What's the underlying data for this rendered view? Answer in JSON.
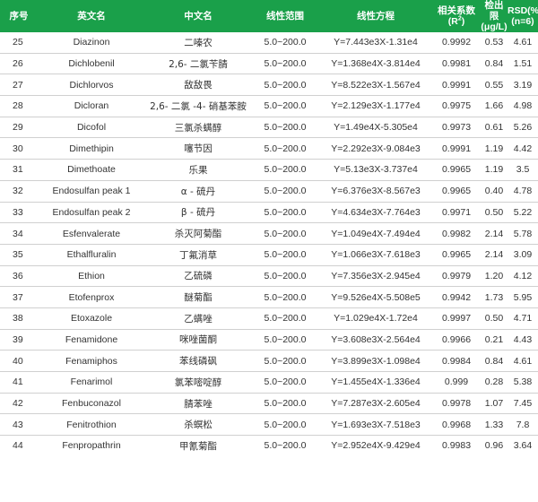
{
  "table": {
    "headers": {
      "no": "序号",
      "en": "英文名",
      "cn": "中文名",
      "range": "线性范围",
      "equation": "线性方程",
      "corr_line1": "相关系数",
      "corr_line2": "(R",
      "corr_sup": "2",
      "corr_close": ")",
      "lod_line1": "检出限",
      "lod_line2": "(μg/L)",
      "rsd_line1": "RSD(%)",
      "rsd_line2": "(n=6)"
    },
    "rows": [
      {
        "no": "25",
        "en": "Diazinon",
        "cn": "二嗪农",
        "range": "5.0~200.0",
        "eq": "Y=7.443e3X-1.31e4",
        "r2": "0.9992",
        "lod": "0.53",
        "rsd": "4.61"
      },
      {
        "no": "26",
        "en": "Dichlobenil",
        "cn": "2,6- 二氯苄腈",
        "range": "5.0~200.0",
        "eq": "Y=1.368e4X-3.814e4",
        "r2": "0.9981",
        "lod": "0.84",
        "rsd": "1.51"
      },
      {
        "no": "27",
        "en": "Dichlorvos",
        "cn": "敌敌畏",
        "range": "5.0~200.0",
        "eq": "Y=8.522e3X-1.567e4",
        "r2": "0.9991",
        "lod": "0.55",
        "rsd": "3.19"
      },
      {
        "no": "28",
        "en": "Dicloran",
        "cn": "2,6- 二氯 -4- 硝基苯胺",
        "range": "5.0~200.0",
        "eq": "Y=2.129e3X-1.177e4",
        "r2": "0.9975",
        "lod": "1.66",
        "rsd": "4.98"
      },
      {
        "no": "29",
        "en": "Dicofol",
        "cn": "三氯杀螨醇",
        "range": "5.0~200.0",
        "eq": "Y=1.49e4X-5.305e4",
        "r2": "0.9973",
        "lod": "0.61",
        "rsd": "5.26"
      },
      {
        "no": "30",
        "en": "Dimethipin",
        "cn": "噻节因",
        "range": "5.0~200.0",
        "eq": "Y=2.292e3X-9.084e3",
        "r2": "0.9991",
        "lod": "1.19",
        "rsd": "4.42"
      },
      {
        "no": "31",
        "en": "Dimethoate",
        "cn": "乐果",
        "range": "5.0~200.0",
        "eq": "Y=5.13e3X-3.737e4",
        "r2": "0.9965",
        "lod": "1.19",
        "rsd": "3.5"
      },
      {
        "no": "32",
        "en": "Endosulfan peak 1",
        "cn": "α - 硫丹",
        "range": "5.0~200.0",
        "eq": "Y=6.376e3X-8.567e3",
        "r2": "0.9965",
        "lod": "0.40",
        "rsd": "4.78"
      },
      {
        "no": "33",
        "en": "Endosulfan peak 2",
        "cn": "β - 硫丹",
        "range": "5.0~200.0",
        "eq": "Y=4.634e3X-7.764e3",
        "r2": "0.9971",
        "lod": "0.50",
        "rsd": "5.22"
      },
      {
        "no": "34",
        "en": "Esfenvalerate",
        "cn": "杀灭阿菊酯",
        "range": "5.0~200.0",
        "eq": "Y=1.049e4X-7.494e4",
        "r2": "0.9982",
        "lod": "2.14",
        "rsd": "5.78"
      },
      {
        "no": "35",
        "en": "Ethalfluralin",
        "cn": "丁氟消草",
        "range": "5.0~200.0",
        "eq": "Y=1.066e3X-7.618e3",
        "r2": "0.9965",
        "lod": "2.14",
        "rsd": "3.09"
      },
      {
        "no": "36",
        "en": "Ethion",
        "cn": "乙硫磷",
        "range": "5.0~200.0",
        "eq": "Y=7.356e3X-2.945e4",
        "r2": "0.9979",
        "lod": "1.20",
        "rsd": "4.12"
      },
      {
        "no": "37",
        "en": "Etofenprox",
        "cn": "醚菊酯",
        "range": "5.0~200.0",
        "eq": "Y=9.526e4X-5.508e5",
        "r2": "0.9942",
        "lod": "1.73",
        "rsd": "5.95"
      },
      {
        "no": "38",
        "en": "Etoxazole",
        "cn": "乙螨唑",
        "range": "5.0~200.0",
        "eq": "Y=1.029e4X-1.72e4",
        "r2": "0.9997",
        "lod": "0.50",
        "rsd": "4.71"
      },
      {
        "no": "39",
        "en": "Fenamidone",
        "cn": "咪唑菌酮",
        "range": "5.0~200.0",
        "eq": "Y=3.608e3X-2.564e4",
        "r2": "0.9966",
        "lod": "0.21",
        "rsd": "4.43"
      },
      {
        "no": "40",
        "en": "Fenamiphos",
        "cn": "苯线磷砜",
        "range": "5.0~200.0",
        "eq": "Y=3.899e3X-1.098e4",
        "r2": "0.9984",
        "lod": "0.84",
        "rsd": "4.61"
      },
      {
        "no": "41",
        "en": "Fenarimol",
        "cn": "氯苯嘧啶醇",
        "range": "5.0~200.0",
        "eq": "Y=1.455e4X-1.336e4",
        "r2": "0.999",
        "lod": "0.28",
        "rsd": "5.38"
      },
      {
        "no": "42",
        "en": "Fenbuconazol",
        "cn": "腈苯唑",
        "range": "5.0~200.0",
        "eq": "Y=7.287e3X-2.605e4",
        "r2": "0.9978",
        "lod": "1.07",
        "rsd": "7.45"
      },
      {
        "no": "43",
        "en": "Fenitrothion",
        "cn": "杀螟松",
        "range": "5.0~200.0",
        "eq": "Y=1.693e3X-7.518e3",
        "r2": "0.9968",
        "lod": "1.33",
        "rsd": "7.8"
      },
      {
        "no": "44",
        "en": "Fenpropathrin",
        "cn": "甲氰菊酯",
        "range": "5.0~200.0",
        "eq": "Y=2.952e4X-9.429e4",
        "r2": "0.9983",
        "lod": "0.96",
        "rsd": "3.64"
      }
    ]
  }
}
